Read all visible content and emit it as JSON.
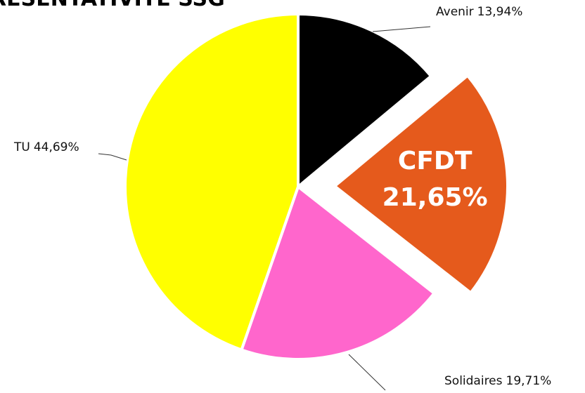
{
  "chart_data": {
    "type": "pie",
    "title": "RESENTATIVITE SSG",
    "categories": [
      "Avenir",
      "CFDT",
      "Solidaires",
      "TU"
    ],
    "values": [
      13.94,
      21.65,
      19.71,
      44.69
    ],
    "value_labels": [
      "13,94%",
      "21,65%",
      "19,71%",
      "44,69%"
    ],
    "colors": [
      "#000000",
      "#e55a1c",
      "#ff66cc",
      "#ffff00"
    ],
    "exploded": [
      false,
      true,
      false,
      false
    ]
  }
}
